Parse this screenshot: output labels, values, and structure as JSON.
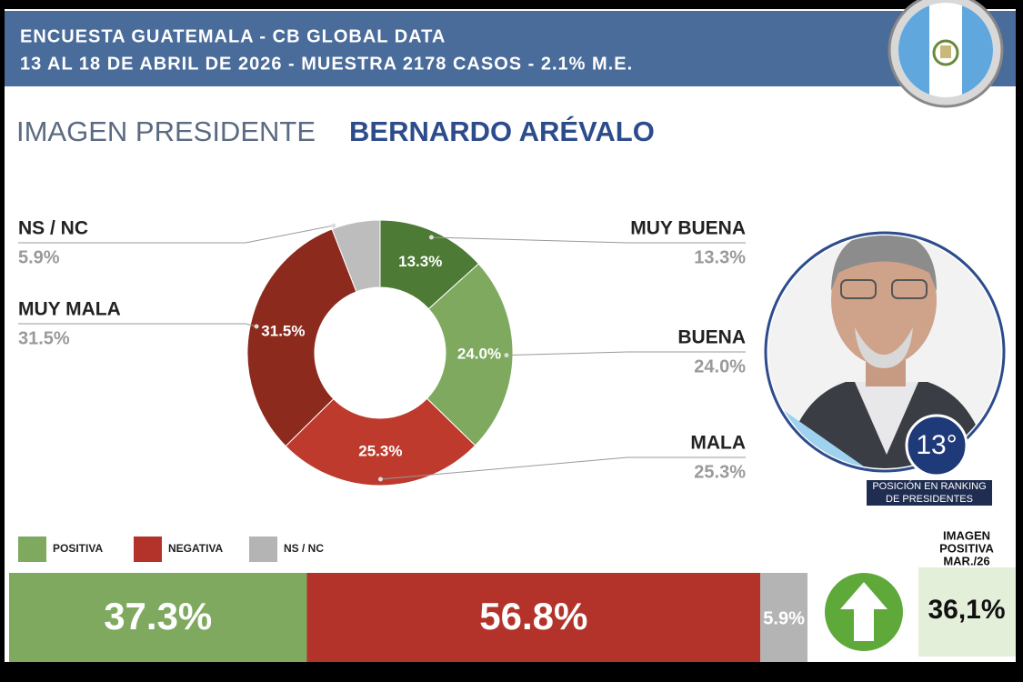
{
  "header": {
    "title": "ENCUESTA GUATEMALA - CB GLOBAL DATA",
    "subtitle": "13 AL 18 DE ABRIL DE 2026 - MUESTRA 2178 CASOS - 2.1% M.E."
  },
  "heading": {
    "prefix": "IMAGEN PRESIDENTE",
    "name": "BERNARDO ARÉVALO"
  },
  "chart_data": [
    {
      "type": "pie",
      "donut": true,
      "categories": [
        "MUY BUENA",
        "BUENA",
        "MALA",
        "MUY MALA",
        "NS / NC"
      ],
      "values": [
        13.3,
        24.0,
        25.3,
        31.5,
        5.9
      ],
      "value_labels": [
        "13.3%",
        "24.0%",
        "25.3%",
        "31.5%",
        "5.9%"
      ],
      "colors": [
        "#4d7a34",
        "#7ea95e",
        "#bd3a2c",
        "#8c2a1e",
        "#bdbdbd"
      ]
    },
    {
      "type": "bar",
      "orientation": "horizontal",
      "stacked": true,
      "legend": "top-left",
      "series": [
        {
          "name": "POSITIVA",
          "color": "#7ea95e",
          "values": [
            37.3
          ],
          "value_labels": [
            "37.3%"
          ]
        },
        {
          "name": "NEGATIVA",
          "color": "#b3332a",
          "values": [
            56.8
          ],
          "value_labels": [
            "56.8%"
          ]
        },
        {
          "name": "NS / NC",
          "color": "#b4b4b4",
          "values": [
            5.9
          ],
          "value_labels": [
            "5.9%"
          ]
        }
      ]
    }
  ],
  "ranking": {
    "position": "13°",
    "caption": [
      "POSICIÓN EN RANKING",
      "DE PRESIDENTES"
    ]
  },
  "previous": {
    "caption": [
      "IMAGEN",
      "POSITIVA",
      "MAR./26"
    ],
    "value": "36,1%"
  }
}
